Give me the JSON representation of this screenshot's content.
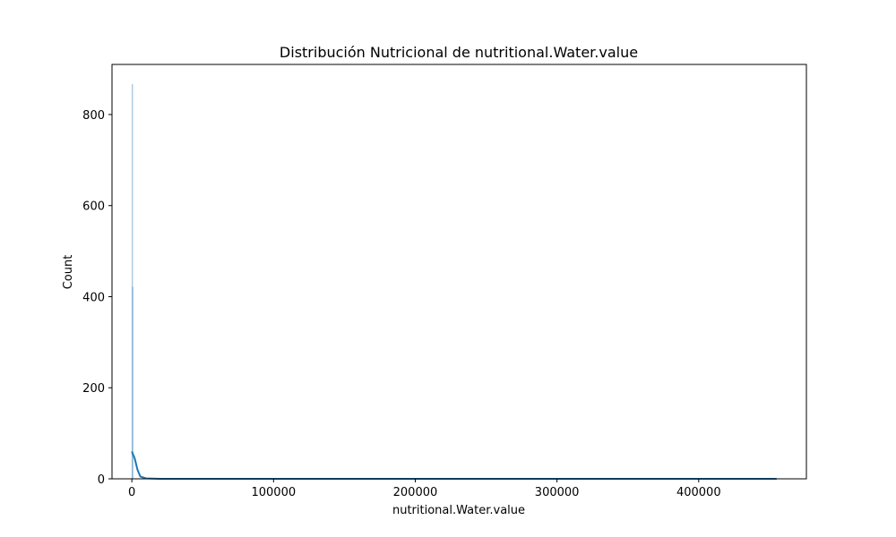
{
  "chart_data": {
    "type": "histogram",
    "title": "Distribución Nutricional de nutritional.Water.value",
    "xlabel": "nutritional.Water.value",
    "ylabel": "Count",
    "xlim": [
      -14000,
      476000
    ],
    "ylim": [
      0,
      910
    ],
    "x_ticks": [
      0,
      100000,
      200000,
      300000,
      400000
    ],
    "x_tick_labels": [
      "0",
      "100000",
      "200000",
      "300000",
      "400000"
    ],
    "y_ticks": [
      0,
      200,
      400,
      600,
      800
    ],
    "y_tick_labels": [
      "0",
      "200",
      "400",
      "600",
      "800"
    ],
    "bins": [
      {
        "x0": 0,
        "x1": 300,
        "count": 866
      },
      {
        "x0": 300,
        "x1": 600,
        "count": 421
      }
    ],
    "kde": [
      {
        "x": 0,
        "y": 60
      },
      {
        "x": 2000,
        "y": 45
      },
      {
        "x": 4000,
        "y": 20
      },
      {
        "x": 6000,
        "y": 5
      },
      {
        "x": 10000,
        "y": 1
      },
      {
        "x": 20000,
        "y": 0
      },
      {
        "x": 455000,
        "y": 0
      }
    ],
    "grid": false,
    "colors": {
      "bar_fill": "#9ab9d8",
      "bar_edge": "#1f77b4",
      "kde_line": "#1f77b4",
      "axis": "#000000"
    }
  }
}
